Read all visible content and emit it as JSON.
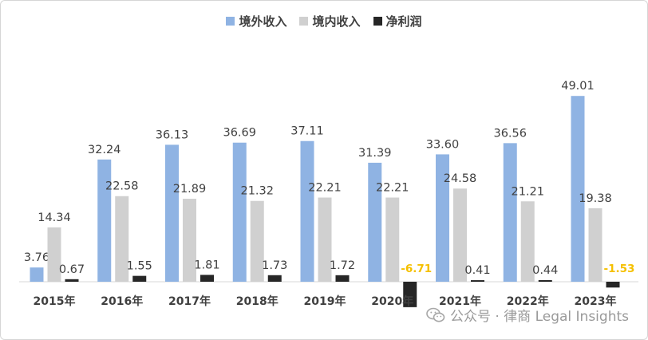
{
  "chart_data": {
    "type": "bar",
    "categories": [
      "2015年",
      "2016年",
      "2017年",
      "2018年",
      "2019年",
      "2020年",
      "2021年",
      "2022年",
      "2023年"
    ],
    "series": [
      {
        "name": "境外收入",
        "color": "#8fb3e3",
        "values": [
          3.76,
          32.24,
          36.13,
          36.69,
          37.11,
          31.39,
          33.6,
          36.56,
          49.01
        ]
      },
      {
        "name": "境内收入",
        "color": "#d0d0d0",
        "values": [
          14.34,
          22.58,
          21.89,
          21.32,
          22.21,
          22.21,
          24.58,
          21.21,
          19.38
        ]
      },
      {
        "name": "净利润",
        "color": "#262626",
        "values": [
          0.67,
          1.55,
          1.81,
          1.73,
          1.72,
          -6.71,
          0.41,
          0.44,
          -1.53
        ]
      }
    ],
    "value_labels": {
      "境外收入": [
        "3.76",
        "32.24",
        "36.13",
        "36.69",
        "37.11",
        "31.39",
        "33.60",
        "36.56",
        "49.01"
      ],
      "境内收入": [
        "14.34",
        "22.58",
        "21.89",
        "21.32",
        "22.21",
        "22.21",
        "24.58",
        "21.21",
        "19.38"
      ],
      "净利润": [
        "0.67",
        "1.55",
        "1.81",
        "1.73",
        "1.72",
        "-6.71",
        "0.41",
        "0.44",
        "-1.53"
      ]
    },
    "negative_label_color": "#f5c000",
    "legend_position": "top-center",
    "grid": false
  },
  "watermark": {
    "text": "公众号 · 律商 Legal Insights",
    "icon": "wechat-icon"
  }
}
